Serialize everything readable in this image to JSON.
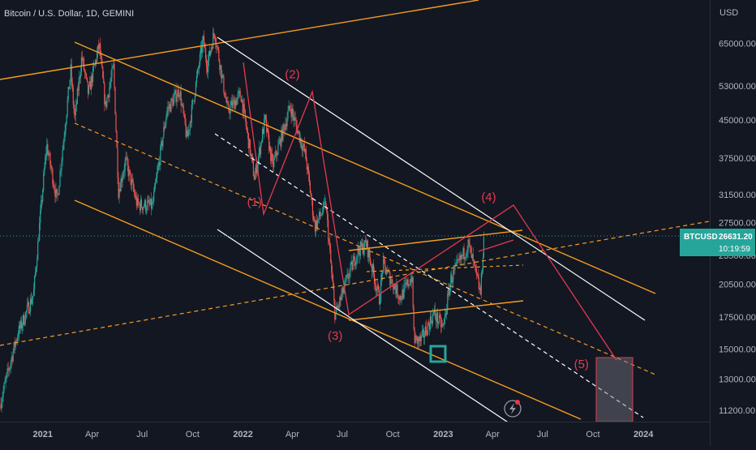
{
  "symbol_title": "Bitcoin / U.S. Dollar, 1D, GEMINI",
  "currency": "USD",
  "price_label": {
    "ticker": "BTCUSD",
    "price": "26631.20",
    "countdown": "10:19:59",
    "color": "#26a69a"
  },
  "colors": {
    "background": "#131722",
    "orange": "#f59d20",
    "white": "#ffffff",
    "red": "#e5394f",
    "teal": "#26a69a",
    "axis_text": "#b2b5be"
  },
  "chart_data": {
    "type": "candlestick",
    "scale": "log",
    "xlim": [
      "2020-10-15",
      "2024-05-01"
    ],
    "ylim": [
      10600,
      80000
    ],
    "x_ticks": [
      {
        "date": "2021-01-01",
        "label": "2021"
      },
      {
        "date": "2021-04-01",
        "label": "Apr"
      },
      {
        "date": "2021-07-01",
        "label": "Jul"
      },
      {
        "date": "2021-10-01",
        "label": "Oct"
      },
      {
        "date": "2022-01-01",
        "label": "2022"
      },
      {
        "date": "2022-04-01",
        "label": "Apr"
      },
      {
        "date": "2022-07-01",
        "label": "Jul"
      },
      {
        "date": "2022-10-01",
        "label": "Oct"
      },
      {
        "date": "2023-01-01",
        "label": "2023"
      },
      {
        "date": "2023-04-01",
        "label": "Apr"
      },
      {
        "date": "2023-07-01",
        "label": "Jul"
      },
      {
        "date": "2023-10-01",
        "label": "Oct"
      },
      {
        "date": "2024-01-01",
        "label": "2024"
      }
    ],
    "y_ticks": [
      {
        "value": 65000,
        "label": "65000.00"
      },
      {
        "value": 53000,
        "label": "53000.00"
      },
      {
        "value": 45000,
        "label": "45000.00"
      },
      {
        "value": 37500,
        "label": "37500.00"
      },
      {
        "value": 31500,
        "label": "31500.00"
      },
      {
        "value": 27500,
        "label": "27500.00"
      },
      {
        "value": 23500,
        "label": "23500.00"
      },
      {
        "value": 20500,
        "label": "20500.00"
      },
      {
        "value": 17500,
        "label": "17500.00"
      },
      {
        "value": 15000,
        "label": "15000.00"
      },
      {
        "value": 13000,
        "label": "13000.00"
      },
      {
        "value": 11200,
        "label": "11200.00"
      }
    ],
    "price_path": [
      [
        "2020-10-15",
        11500
      ],
      [
        "2020-11-15",
        16000
      ],
      [
        "2020-12-15",
        19500
      ],
      [
        "2021-01-08",
        40000
      ],
      [
        "2021-01-27",
        30500
      ],
      [
        "2021-02-21",
        57000
      ],
      [
        "2021-02-28",
        45000
      ],
      [
        "2021-03-13",
        61000
      ],
      [
        "2021-03-25",
        51000
      ],
      [
        "2021-04-14",
        64500
      ],
      [
        "2021-04-25",
        48000
      ],
      [
        "2021-05-10",
        58000
      ],
      [
        "2021-05-19",
        32000
      ],
      [
        "2021-06-01",
        37000
      ],
      [
        "2021-06-22",
        30000
      ],
      [
        "2021-07-20",
        29800
      ],
      [
        "2021-08-15",
        47000
      ],
      [
        "2021-09-07",
        52000
      ],
      [
        "2021-09-21",
        41000
      ],
      [
        "2021-10-20",
        66000
      ],
      [
        "2021-10-28",
        58500
      ],
      [
        "2021-11-10",
        69000
      ],
      [
        "2021-12-04",
        47000
      ],
      [
        "2021-12-28",
        51000
      ],
      [
        "2022-01-22",
        34000
      ],
      [
        "2022-02-10",
        45000
      ],
      [
        "2022-02-24",
        36000
      ],
      [
        "2022-03-28",
        48000
      ],
      [
        "2022-04-25",
        38000
      ],
      [
        "2022-05-12",
        27000
      ],
      [
        "2022-06-01",
        30000
      ],
      [
        "2022-06-18",
        17600
      ],
      [
        "2022-07-10",
        21000
      ],
      [
        "2022-07-29",
        24000
      ],
      [
        "2022-08-14",
        24800
      ],
      [
        "2022-09-07",
        19000
      ],
      [
        "2022-09-13",
        22500
      ],
      [
        "2022-10-15",
        19200
      ],
      [
        "2022-11-05",
        21300
      ],
      [
        "2022-11-09",
        15700
      ],
      [
        "2022-11-21",
        15600
      ],
      [
        "2022-12-15",
        17800
      ],
      [
        "2023-01-01",
        16600
      ],
      [
        "2023-01-15",
        21000
      ],
      [
        "2023-02-16",
        24800
      ],
      [
        "2023-03-10",
        19600
      ],
      [
        "2023-03-17",
        26600
      ]
    ],
    "wave_labels": [
      {
        "label": "(1)",
        "date": "2022-01-22",
        "value": 29800
      },
      {
        "label": "(2)",
        "date": "2022-04-01",
        "value": 55000
      },
      {
        "label": "(3)",
        "date": "2022-06-18",
        "value": 15700
      },
      {
        "label": "(4)",
        "date": "2023-03-25",
        "value": 30500
      },
      {
        "label": "(5)",
        "date": "2023-09-10",
        "value": 13700
      }
    ]
  }
}
